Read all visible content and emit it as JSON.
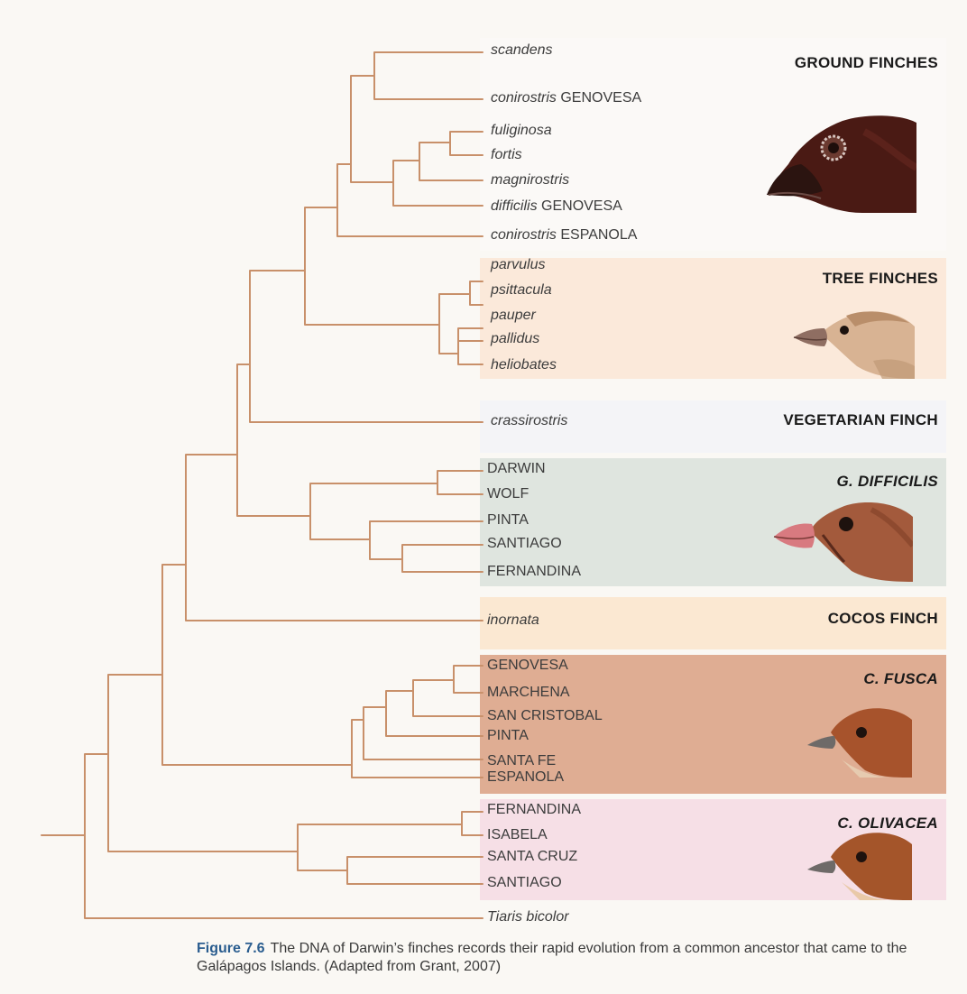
{
  "groups": {
    "ground": "GROUND FINCHES",
    "tree": "TREE FINCHES",
    "vegetarian": "VEGETARIAN FINCH",
    "gdifficilis": "G. DIFFICILIS",
    "cocos": "COCOS FINCH",
    "cfusca": "C. FUSCA",
    "colivacea": "C. OLIVACEA"
  },
  "leaves": {
    "scandens": {
      "species": "scandens",
      "island": ""
    },
    "conirostris_genovesa": {
      "species": "conirostris",
      "island": "GENOVESA"
    },
    "fuliginosa": {
      "species": "fuliginosa",
      "island": ""
    },
    "fortis": {
      "species": "fortis",
      "island": ""
    },
    "magnirostris": {
      "species": "magnirostris",
      "island": ""
    },
    "difficilis_genovesa": {
      "species": "difficilis",
      "island": "GENOVESA"
    },
    "conirostris_espanola": {
      "species": "conirostris",
      "island": "ESPANOLA"
    },
    "parvulus": {
      "species": "parvulus",
      "island": ""
    },
    "psittacula": {
      "species": "psittacula",
      "island": ""
    },
    "pauper": {
      "species": "pauper",
      "island": ""
    },
    "pallidus": {
      "species": "pallidus",
      "island": ""
    },
    "heliobates": {
      "species": "heliobates",
      "island": ""
    },
    "crassirostris": {
      "species": "crassirostris",
      "island": ""
    },
    "gd_darwin": {
      "species": "",
      "island": "DARWIN"
    },
    "gd_wolf": {
      "species": "",
      "island": "WOLF"
    },
    "gd_pinta": {
      "species": "",
      "island": "PINTA"
    },
    "gd_santiago": {
      "species": "",
      "island": "SANTIAGO"
    },
    "gd_fernandina": {
      "species": "",
      "island": "FERNANDINA"
    },
    "inornata": {
      "species": "inornata",
      "island": ""
    },
    "cf_genovesa": {
      "species": "",
      "island": "GENOVESA"
    },
    "cf_marchena": {
      "species": "",
      "island": "MARCHENA"
    },
    "cf_sancristobal": {
      "species": "",
      "island": "SAN CRISTOBAL"
    },
    "cf_pinta": {
      "species": "",
      "island": "PINTA"
    },
    "cf_santafe": {
      "species": "",
      "island": "SANTA FE"
    },
    "cf_espanola": {
      "species": "",
      "island": "ESPANOLA"
    },
    "co_fernandina": {
      "species": "",
      "island": "FERNANDINA"
    },
    "co_isabela": {
      "species": "",
      "island": "ISABELA"
    },
    "co_santacruz": {
      "species": "",
      "island": "SANTA CRUZ"
    },
    "co_santiago": {
      "species": "",
      "island": "SANTIAGO"
    },
    "tiaris": {
      "species": "Tiaris bicolor",
      "island": ""
    }
  },
  "caption": {
    "label": "Figure 7.6",
    "text": "The DNA of Darwin’s finches records their rapid evolution from a common ancestor that came to the Galápagos Islands. (Adapted from Grant, 2007)"
  },
  "colors": {
    "branch": "#c8906a",
    "ground_band": "#fbf9f7",
    "tree_band": "#fbe9da",
    "vegetarian_band": "#f4f4f7",
    "gdifficilis_band": "#dfe5df",
    "cocos_band": "#fbe8d2",
    "cfusca_band": "#dfad93",
    "colivacea_band": "#f6dfe6",
    "caption_label": "#2a5d8f"
  }
}
